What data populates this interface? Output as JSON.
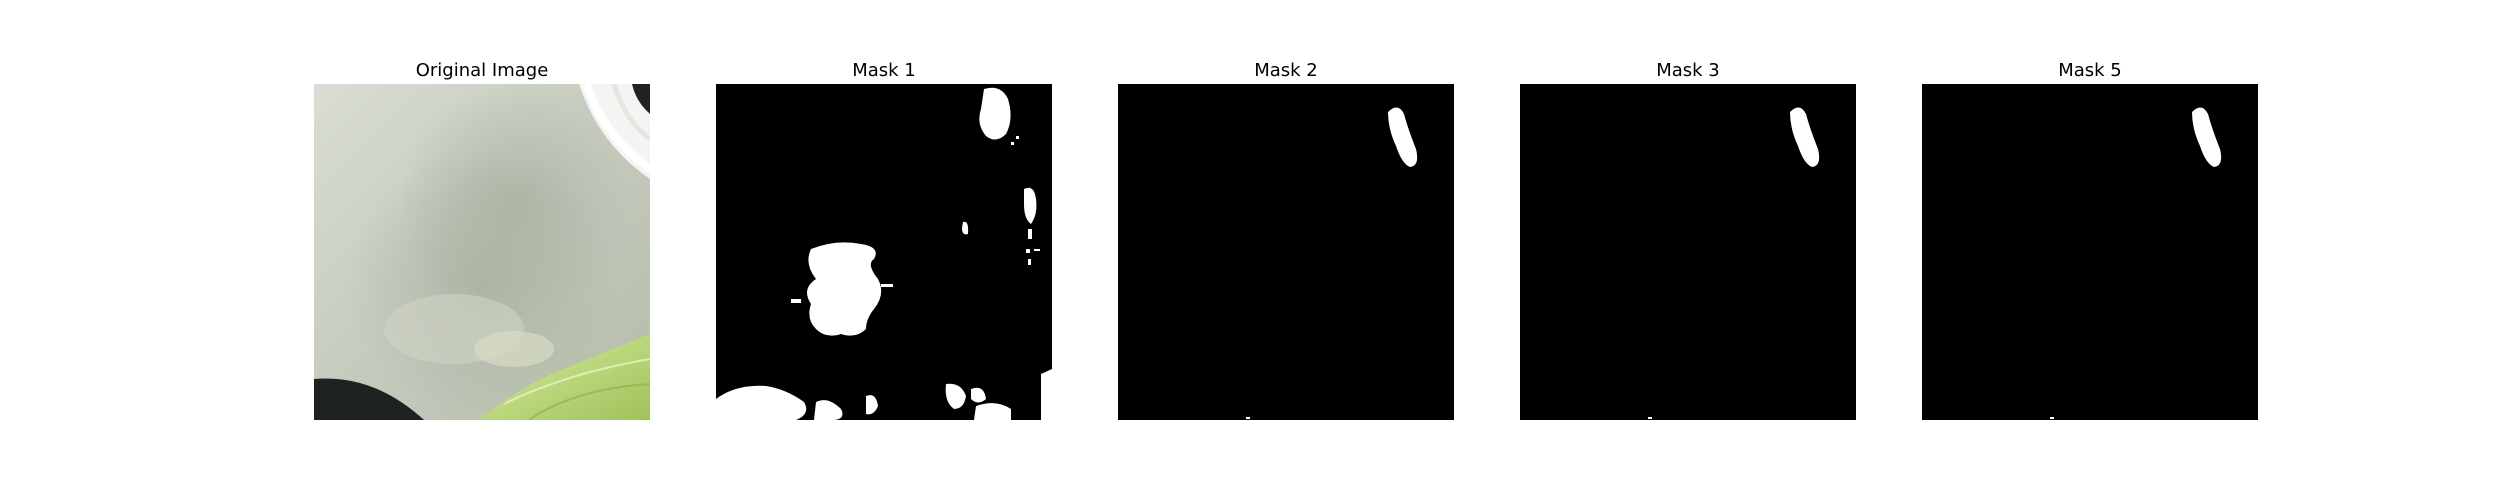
{
  "figure": {
    "panels": [
      {
        "title": "Original Image",
        "kind": "photo"
      },
      {
        "title": "Mask 1",
        "kind": "mask"
      },
      {
        "title": "Mask 2",
        "kind": "mask"
      },
      {
        "title": "Mask 3",
        "kind": "mask"
      },
      {
        "title": "Mask 5",
        "kind": "mask"
      }
    ]
  },
  "colors": {
    "mask_background": "#000000",
    "mask_foreground": "#ffffff",
    "photo_base": "#c9cec2",
    "leaf": "#b8d774"
  }
}
